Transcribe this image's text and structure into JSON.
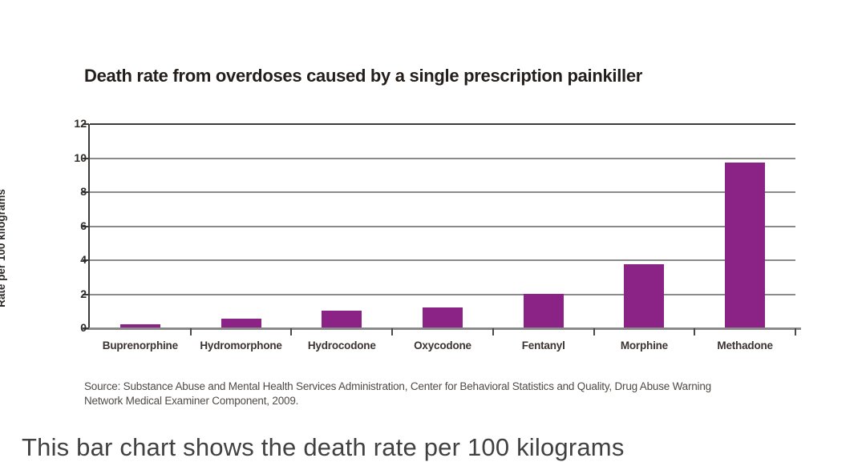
{
  "page": {
    "title": "Death rate from overdoses caused by a single prescription painkiller",
    "source_line1": "Source: Substance Abuse and Mental Health Services Administration, Center for Behavioral Statistics and Quality, Drug Abuse Warning",
    "source_line2": "Network Medical Examiner Component, 2009.",
    "caption_cutoff": "This bar chart shows the death rate per 100 kilograms"
  },
  "colors": {
    "bar": "#8b2386",
    "grid": "#8a8a8a",
    "axis": "#3c3c3c",
    "title_text": "#241e1b"
  },
  "chart_data": {
    "type": "bar",
    "title": "Death rate from overdoses caused by a single prescription painkiller",
    "categories": [
      "Buprenorphine",
      "Hydromorphone",
      "Hydrocodone",
      "Oxycodone",
      "Fentanyl",
      "Morphine",
      "Methadone"
    ],
    "values": [
      0.2,
      0.5,
      1.0,
      1.2,
      2.0,
      3.7,
      9.7
    ],
    "xlabel": "",
    "ylabel": "Rate per 100 kilograms",
    "ylim": [
      0,
      12
    ],
    "yticks": [
      0,
      2,
      4,
      6,
      8,
      10,
      12
    ],
    "grid": true,
    "legend": false,
    "bar_color": "#8b2386"
  }
}
